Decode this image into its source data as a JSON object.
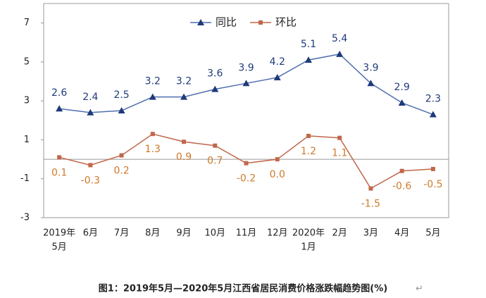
{
  "chart_data": {
    "type": "line",
    "categories": [
      [
        "2019年",
        "5月"
      ],
      "6月",
      "7月",
      "8月",
      "9月",
      "10月",
      "11月",
      "12月",
      [
        "2020年",
        "1月"
      ],
      "2月",
      "3月",
      "4月",
      "5月"
    ],
    "series": [
      {
        "name": "同比",
        "color": "#1f3a7a",
        "values": [
          2.6,
          2.4,
          2.5,
          3.2,
          3.2,
          3.6,
          3.9,
          4.2,
          5.1,
          5.4,
          3.9,
          2.9,
          2.3
        ]
      },
      {
        "name": "环比",
        "color": "#c0674a",
        "values": [
          0.1,
          -0.3,
          0.2,
          1.3,
          0.9,
          0.7,
          -0.2,
          0.0,
          1.2,
          1.1,
          -1.5,
          -0.6,
          -0.5
        ],
        "value_labels": [
          "0.1",
          "-0.3",
          "0.2",
          "1.3",
          "0.9",
          "0.7",
          "-0.2",
          "0.0",
          "1.2",
          "1.1",
          "-1.5",
          "-0.6",
          "-0.5"
        ]
      }
    ],
    "ylim": [
      -3,
      8
    ],
    "yticks": [
      -3,
      -1,
      1,
      3,
      5,
      7
    ],
    "legend": "top",
    "caption": "图1：2019年5月—2020年5月江西省居民消费价格涨跌幅趋势图(%)",
    "return_mark": "↵"
  }
}
